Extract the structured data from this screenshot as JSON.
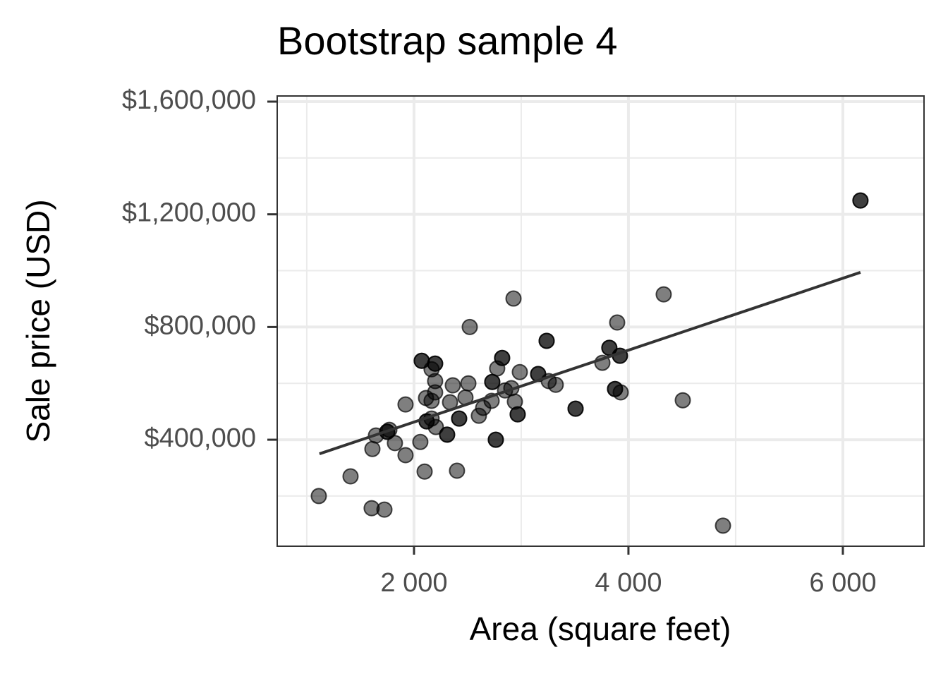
{
  "chart_data": {
    "type": "scatter",
    "title": "Bootstrap sample 4",
    "x_label": "Area (square feet)",
    "y_label": "Sale price (USD)",
    "xlim": [
      724,
      6757
    ],
    "ylim": [
      22000,
      1620000
    ],
    "xticks": [
      {
        "value": 2000,
        "label": "2 000"
      },
      {
        "value": 4000,
        "label": "4 000"
      },
      {
        "value": 6000,
        "label": "6 000"
      }
    ],
    "yticks": [
      {
        "value": 400000,
        "label": "$400,000"
      },
      {
        "value": 800000,
        "label": "$800,000"
      },
      {
        "value": 1200000,
        "label": "$1,200,000"
      },
      {
        "value": 1600000,
        "label": "$1,600,000"
      }
    ],
    "minor_xticks": [
      1000,
      3000,
      5000
    ],
    "minor_yticks": [
      200000,
      600000,
      1000000,
      1400000
    ],
    "grid": true,
    "color": "#000000",
    "opacity": 0.5,
    "series": [
      {
        "x": [
          1112,
          1408,
          1605,
          1724,
          1612,
          1645,
          1750,
          1750,
          1770,
          1822,
          1921,
          1921,
          2059,
          2099,
          2072,
          2072,
          2112,
          2118,
          2118,
          2164,
          2164,
          2197,
          2197,
          2197,
          2197,
          2204,
          2164,
          2309,
          2309,
          2362,
          2336,
          2401,
          2421,
          2421,
          2480,
          2507,
          2520,
          2605,
          2645,
          2724,
          2730,
          2730,
          2763,
          2763,
          2776,
          2822,
          2822,
          2849,
          2908,
          2928,
          2941,
          2967,
          2967,
          2987,
          3158,
          3158,
          3237,
          3237,
          3257,
          3322,
          3507,
          3507,
          3757,
          3822,
          3822,
          3895,
          3875,
          3875,
          3928,
          3921,
          3921,
          4329,
          4507,
          4882,
          6164,
          6164
        ],
        "values": [
          200000,
          270000,
          157000,
          152000,
          367000,
          415000,
          428000,
          428000,
          435000,
          388000,
          345000,
          525000,
          392000,
          287000,
          680000,
          680000,
          548000,
          465000,
          465000,
          538000,
          650000,
          670000,
          670000,
          608000,
          568000,
          445000,
          475000,
          418000,
          418000,
          593000,
          533000,
          290000,
          475000,
          475000,
          550000,
          600000,
          800000,
          485000,
          513000,
          538000,
          605000,
          605000,
          400000,
          400000,
          653000,
          690000,
          690000,
          575000,
          583000,
          901000,
          535000,
          490000,
          490000,
          640000,
          633000,
          633000,
          751000,
          751000,
          608000,
          595000,
          510000,
          510000,
          673000,
          726000,
          726000,
          816000,
          580000,
          580000,
          568000,
          698000,
          698000,
          916000,
          540000,
          95000,
          1249000,
          1249000
        ]
      }
    ],
    "fit": {
      "x": [
        1118,
        6164
      ],
      "values": [
        350000,
        994000
      ],
      "color": "#333333"
    }
  }
}
